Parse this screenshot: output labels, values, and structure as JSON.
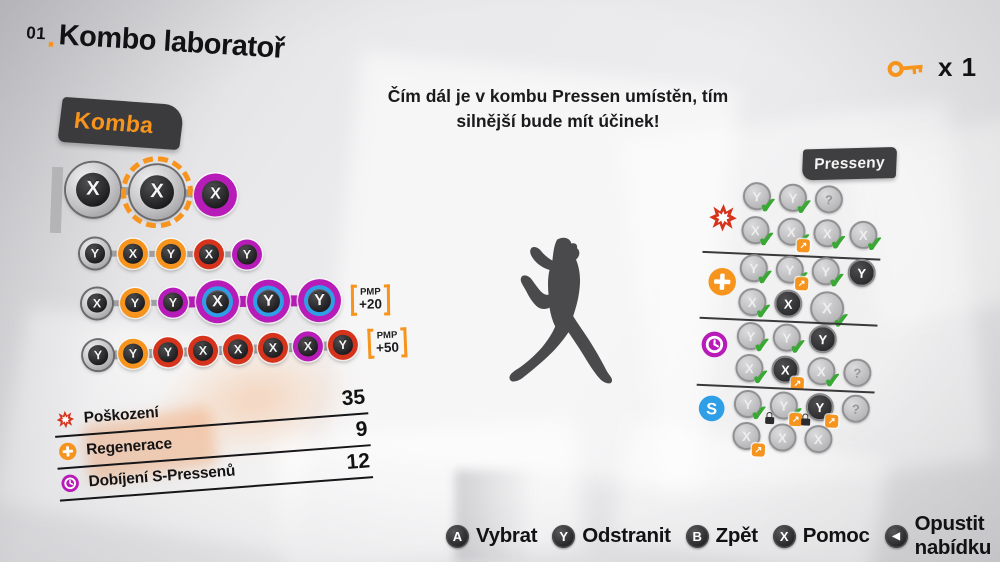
{
  "title": {
    "number": "01",
    "separator": ".",
    "text": "Kombo laboratoř"
  },
  "key_counter": {
    "label": "x 1"
  },
  "hint": {
    "line1": "Čím dál je v kombu Pressen umístěn, tím",
    "line2": "silnější bude mít účinek!"
  },
  "tabs": {
    "komba": "Komba",
    "presseny": "Presseny"
  },
  "combos": {
    "rows": [
      {
        "buttons": [
          {
            "letter": "X",
            "ring": "silver",
            "size": "lg"
          },
          {
            "letter": "X",
            "ring": "silver",
            "size": "lg",
            "selected": true
          },
          {
            "letter": "X",
            "ring": "purple",
            "size": "md"
          }
        ],
        "badge": null
      },
      {
        "buttons": [
          {
            "letter": "Y",
            "ring": "silver",
            "size": "sm"
          },
          {
            "letter": "X",
            "ring": "orange",
            "size": "sm"
          },
          {
            "letter": "Y",
            "ring": "orange",
            "size": "sm"
          },
          {
            "letter": "X",
            "ring": "red",
            "size": "sm"
          },
          {
            "letter": "Y",
            "ring": "purple",
            "size": "sm"
          }
        ],
        "badge": null
      },
      {
        "buttons": [
          {
            "letter": "X",
            "ring": "silver",
            "size": "sm"
          },
          {
            "letter": "Y",
            "ring": "orange",
            "size": "sm"
          },
          {
            "letter": "Y",
            "ring": "purple",
            "size": "sm"
          },
          {
            "letter": "X",
            "ring": "purpleblue",
            "size": "md"
          },
          {
            "letter": "Y",
            "ring": "purpleblue",
            "size": "md"
          },
          {
            "letter": "Y",
            "ring": "purpleblue",
            "size": "md"
          }
        ],
        "links": [
          "gray",
          "gray",
          "purple",
          "purple",
          "purple"
        ],
        "badge": {
          "top": "PMP",
          "value": "+20"
        }
      },
      {
        "buttons": [
          {
            "letter": "Y",
            "ring": "silver",
            "size": "sm"
          },
          {
            "letter": "Y",
            "ring": "orange",
            "size": "sm"
          },
          {
            "letter": "Y",
            "ring": "red",
            "size": "sm"
          },
          {
            "letter": "X",
            "ring": "red",
            "size": "sm"
          },
          {
            "letter": "X",
            "ring": "red",
            "size": "sm"
          },
          {
            "letter": "X",
            "ring": "red",
            "size": "sm"
          },
          {
            "letter": "X",
            "ring": "purple",
            "size": "sm"
          },
          {
            "letter": "Y",
            "ring": "red",
            "size": "sm"
          }
        ],
        "badge": {
          "top": "PMP",
          "value": "+50"
        }
      }
    ]
  },
  "stats": [
    {
      "icon": "burst",
      "label": "Poškození",
      "value": "35"
    },
    {
      "icon": "plus",
      "label": "Regenerace",
      "value": "9"
    },
    {
      "icon": "clock",
      "label": "Dobíjení S-Pressenů",
      "value": "12"
    }
  ],
  "pressens": {
    "groups": [
      {
        "icon": "burst",
        "rows": [
          [
            {
              "letter": "Y",
              "states": [
                "check"
              ]
            },
            {
              "letter": "Y",
              "states": [
                "check"
              ]
            },
            {
              "letter": "?",
              "states": [
                "question"
              ]
            }
          ],
          [
            {
              "letter": "X",
              "states": [
                "check"
              ]
            },
            {
              "letter": "X",
              "states": [
                "check",
                "badge"
              ]
            },
            {
              "letter": "X",
              "states": [
                "check"
              ]
            },
            {
              "letter": "X",
              "states": [
                "check"
              ]
            }
          ]
        ]
      },
      {
        "icon": "plus",
        "rows": [
          [
            {
              "letter": "Y",
              "states": [
                "check"
              ]
            },
            {
              "letter": "Y",
              "states": [
                "check",
                "badge"
              ]
            },
            {
              "letter": "Y",
              "states": [
                "check"
              ]
            },
            {
              "letter": "Y",
              "states": [
                "dark"
              ]
            }
          ],
          [
            {
              "letter": "X",
              "states": [
                "check"
              ]
            },
            {
              "letter": "X",
              "states": [
                "dark"
              ]
            },
            {
              "letter": "X",
              "states": [
                "check",
                "big"
              ]
            }
          ]
        ]
      },
      {
        "icon": "clock",
        "rows": [
          [
            {
              "letter": "Y",
              "states": [
                "check"
              ]
            },
            {
              "letter": "Y",
              "states": [
                "check"
              ]
            },
            {
              "letter": "Y",
              "states": [
                "dark"
              ]
            }
          ],
          [
            {
              "letter": "X",
              "states": [
                "check"
              ]
            },
            {
              "letter": "X",
              "states": [
                "dark",
                "badge"
              ]
            },
            {
              "letter": "X",
              "states": [
                "check"
              ]
            },
            {
              "letter": "?",
              "states": [
                "question"
              ]
            }
          ]
        ]
      },
      {
        "icon": "slink",
        "rows": [
          [
            {
              "letter": "Y",
              "states": [
                "check"
              ]
            },
            {
              "letter": "Y",
              "states": [
                "check",
                "badge"
              ]
            },
            {
              "letter": "Y",
              "states": [
                "dark",
                "badge"
              ]
            },
            {
              "letter": "?",
              "states": [
                "question"
              ]
            }
          ],
          [
            {
              "letter": "X",
              "states": [
                "badge"
              ]
            },
            {
              "letter": "X",
              "states": [
                "lock"
              ]
            },
            {
              "letter": "X",
              "states": [
                "lock"
              ]
            }
          ]
        ]
      }
    ]
  },
  "controls": [
    {
      "button": "A",
      "label": "Vybrat"
    },
    {
      "button": "Y",
      "label": "Odstranit"
    },
    {
      "button": "B",
      "label": "Zpět"
    },
    {
      "button": "X",
      "label": "Pomoc"
    },
    {
      "button": "back",
      "label": "Opustit nabídku"
    }
  ],
  "icons": {
    "check": "✔",
    "badge_arrow": "↗",
    "back_glyph": "◀",
    "slink_letter": "S"
  },
  "colors": {
    "orange": "#f7941d",
    "red": "#d6331d",
    "purple": "#b81cb8",
    "blue": "#2e9fe6",
    "green": "#3aa834"
  }
}
